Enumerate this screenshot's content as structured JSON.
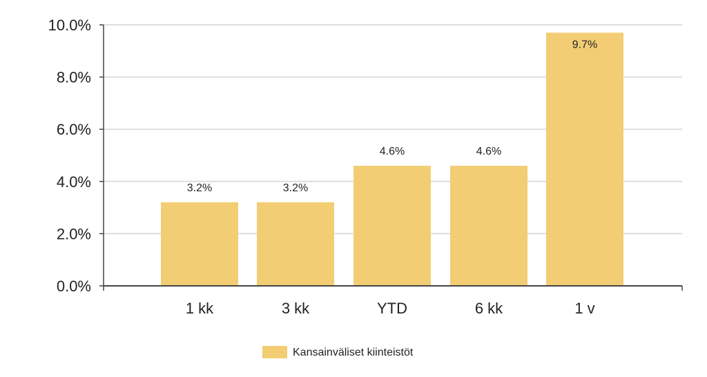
{
  "chart_data": {
    "type": "bar",
    "categories": [
      "1 kk",
      "3 kk",
      "YTD",
      "6 kk",
      "1 v"
    ],
    "series": [
      {
        "name": "Kansainväliset kiinteistöt",
        "values": [
          3.2,
          3.2,
          4.6,
          4.6,
          9.7
        ],
        "color": "#f3cd74"
      }
    ],
    "data_labels": [
      "3.2%",
      "3.2%",
      "4.6%",
      "4.6%",
      "9.7%"
    ],
    "ylim": [
      0,
      10
    ],
    "y_ticks": [
      0,
      2,
      4,
      6,
      8,
      10
    ],
    "y_tick_labels": [
      "0.0%",
      "2.0%",
      "4.0%",
      "6.0%",
      "8.0%",
      "10.0%"
    ],
    "grid": true,
    "legend_position": "bottom",
    "title": "",
    "xlabel": "",
    "ylabel": ""
  }
}
